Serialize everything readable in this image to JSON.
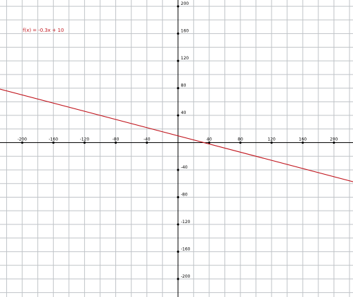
{
  "chart_data": {
    "type": "line",
    "title": "",
    "xlabel": "",
    "ylabel": "",
    "xlim": [
      -228.5,
      224.5
    ],
    "ylim": [
      -226.5,
      209.3
    ],
    "x_ticks": [
      -200,
      -160,
      -120,
      -80,
      -40,
      40,
      80,
      120,
      160,
      200
    ],
    "y_ticks": [
      200,
      160,
      120,
      80,
      40,
      -40,
      -80,
      -120,
      -160,
      -200
    ],
    "x_tick_labels": [
      "-200",
      "-160",
      "-120",
      "-80",
      "-40",
      "40",
      "80",
      "120",
      "160",
      "200"
    ],
    "y_tick_labels": [
      "200",
      "160",
      "120",
      "80",
      "40",
      "-40",
      "-80",
      "-120",
      "-160",
      "-200"
    ],
    "grid": true,
    "grid_step": 20,
    "series": [
      {
        "label": "f(x) = -0.3x + 10",
        "slope": -0.3,
        "intercept": 10,
        "x": [
          -228.5,
          224.5
        ],
        "y": [
          78.55,
          -57.35
        ]
      }
    ]
  },
  "colors": {
    "grid": "#bfc3c7",
    "axis": "#000000",
    "line": "#c0141c"
  }
}
